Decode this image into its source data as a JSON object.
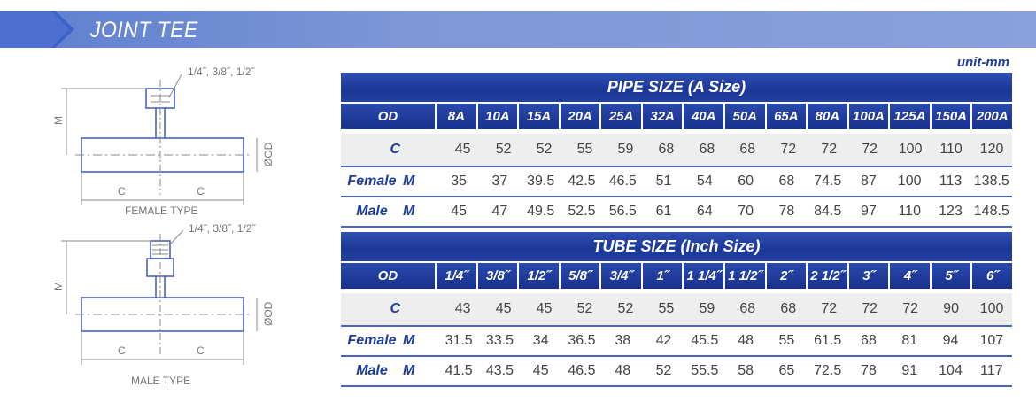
{
  "header": {
    "title": "JOINT TEE"
  },
  "unit": "unit-mm",
  "drawing": {
    "female": {
      "type_label": "FEMALE TYPE",
      "thread_label": "1/4˝, 3/8˝, 1/2˝",
      "m": "M",
      "c": "C",
      "od": "ØOD"
    },
    "male": {
      "type_label": "MALE TYPE",
      "thread_label": "1/4˝, 3/8˝, 1/2˝",
      "m": "M",
      "c": "C",
      "od": "ØOD"
    }
  },
  "pipe_table": {
    "title": "PIPE SIZE (A Size)",
    "od_label": "OD",
    "sizes": [
      "8A",
      "10A",
      "15A",
      "20A",
      "25A",
      "32A",
      "40A",
      "50A",
      "65A",
      "80A",
      "100A",
      "125A",
      "150A",
      "200A"
    ],
    "c_label": "C",
    "female_label": "Female",
    "male_label": "Male",
    "m_label": "M",
    "c": [
      "45",
      "52",
      "52",
      "55",
      "59",
      "68",
      "68",
      "68",
      "72",
      "72",
      "72",
      "100",
      "110",
      "120"
    ],
    "female_m": [
      "35",
      "37",
      "39.5",
      "42.5",
      "46.5",
      "51",
      "54",
      "60",
      "68",
      "74.5",
      "87",
      "100",
      "113",
      "138.5"
    ],
    "male_m": [
      "45",
      "47",
      "49.5",
      "52.5",
      "56.5",
      "61",
      "64",
      "70",
      "78",
      "84.5",
      "97",
      "110",
      "123",
      "148.5"
    ]
  },
  "tube_table": {
    "title": "TUBE SIZE (Inch Size)",
    "od_label": "OD",
    "sizes": [
      "1/4˝",
      "3/8˝",
      "1/2˝",
      "5/8˝",
      "3/4˝",
      "1˝",
      "1 1/4˝",
      "1 1/2˝",
      "2˝",
      "2 1/2˝",
      "3˝",
      "4˝",
      "5˝",
      "6˝"
    ],
    "c_label": "C",
    "female_label": "Female",
    "male_label": "Male",
    "m_label": "M",
    "c": [
      "43",
      "45",
      "45",
      "52",
      "52",
      "55",
      "59",
      "68",
      "68",
      "72",
      "72",
      "72",
      "90",
      "100"
    ],
    "female_m": [
      "31.5",
      "33.5",
      "34",
      "36.5",
      "38",
      "42",
      "45.5",
      "48",
      "55",
      "61.5",
      "68",
      "81",
      "94",
      "107"
    ],
    "male_m": [
      "41.5",
      "43.5",
      "45",
      "46.5",
      "48",
      "52",
      "55.5",
      "58",
      "65",
      "72.5",
      "78",
      "91",
      "104",
      "117"
    ]
  },
  "colors": {
    "accent": "#1c3796",
    "label": "#1f3d9a",
    "banner": "#7f97d6"
  }
}
